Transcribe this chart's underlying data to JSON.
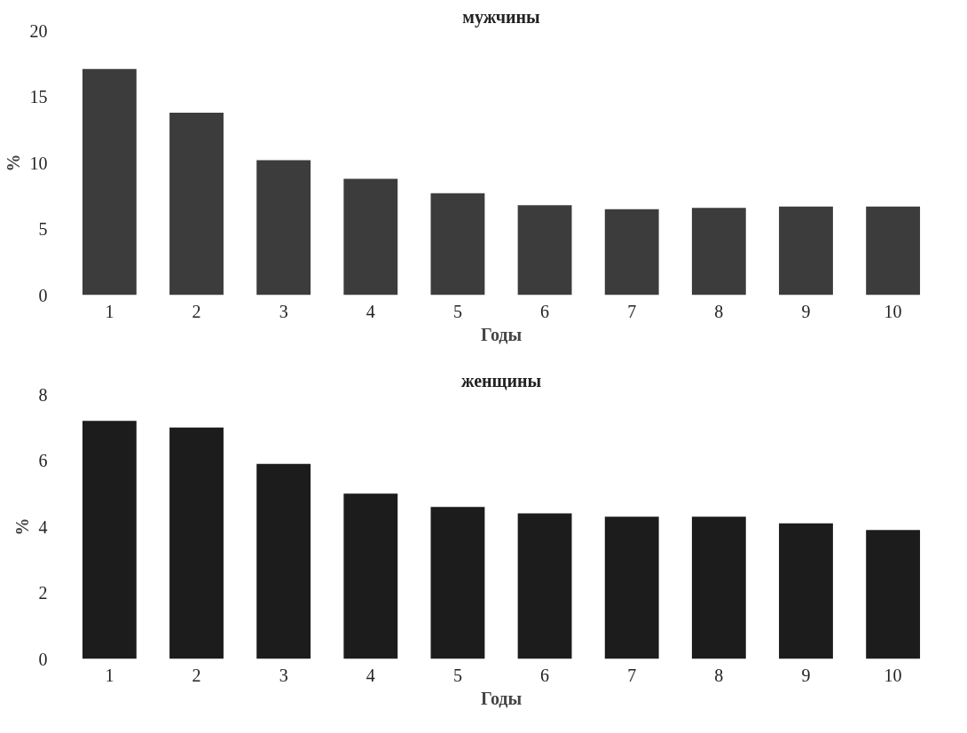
{
  "chart_data": [
    {
      "type": "bar",
      "title": "мужчины",
      "xlabel": "Годы",
      "ylabel": "%",
      "categories": [
        "1",
        "2",
        "3",
        "4",
        "5",
        "6",
        "7",
        "8",
        "9",
        "10"
      ],
      "values": [
        17.1,
        13.8,
        10.2,
        8.8,
        7.7,
        6.8,
        6.5,
        6.6,
        6.7,
        6.7
      ],
      "color": "#3c3c3c",
      "ylim": [
        0,
        20
      ],
      "yticks": [
        0,
        5,
        10,
        15,
        20
      ],
      "grid": false
    },
    {
      "type": "bar",
      "title": "женщины",
      "xlabel": "Годы",
      "ylabel": "%",
      "categories": [
        "1",
        "2",
        "3",
        "4",
        "5",
        "6",
        "7",
        "8",
        "9",
        "10"
      ],
      "values": [
        7.2,
        7.0,
        5.9,
        5.0,
        4.6,
        4.4,
        4.3,
        4.3,
        4.1,
        3.9
      ],
      "color": "#1c1c1c",
      "ylim": [
        0,
        8
      ],
      "yticks": [
        0,
        2,
        4,
        6,
        8
      ],
      "grid": false
    }
  ]
}
